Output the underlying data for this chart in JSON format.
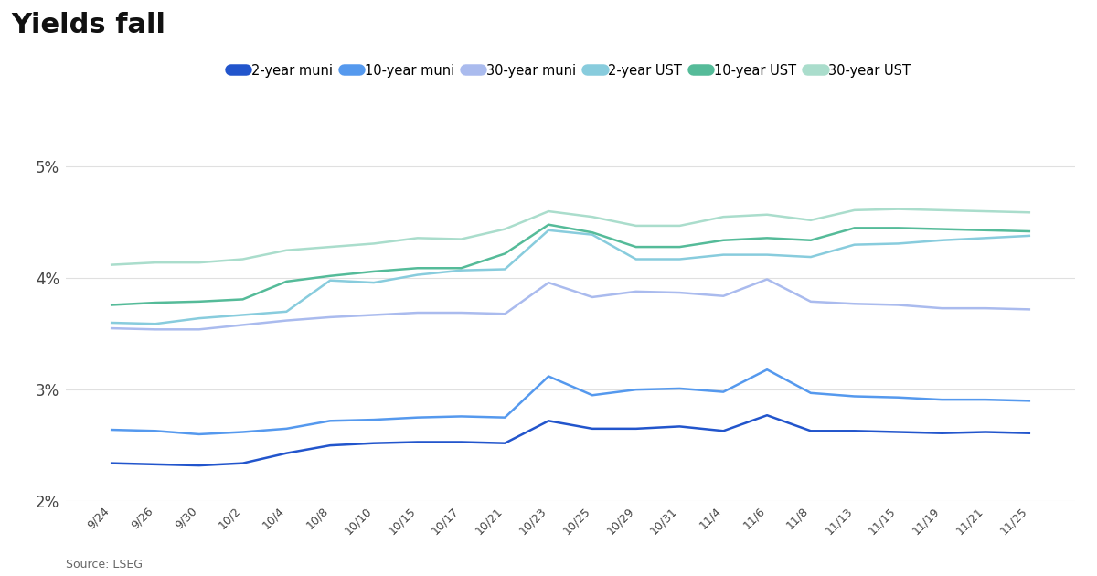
{
  "title": "Yields fall",
  "source": "Source: LSEG",
  "x_labels": [
    "9/24",
    "9/26",
    "9/30",
    "10/2",
    "10/4",
    "10/8",
    "10/10",
    "10/15",
    "10/17",
    "10/21",
    "10/23",
    "10/25",
    "10/29",
    "10/31",
    "11/4",
    "11/6",
    "11/8",
    "11/13",
    "11/15",
    "11/19",
    "11/21",
    "11/25"
  ],
  "series": {
    "2yr_muni": [
      2.34,
      2.33,
      2.32,
      2.34,
      2.43,
      2.5,
      2.52,
      2.53,
      2.53,
      2.52,
      2.72,
      2.65,
      2.65,
      2.67,
      2.63,
      2.77,
      2.63,
      2.63,
      2.62,
      2.61,
      2.62,
      2.61
    ],
    "10yr_muni": [
      2.64,
      2.63,
      2.6,
      2.62,
      2.65,
      2.72,
      2.73,
      2.75,
      2.76,
      2.75,
      3.12,
      2.95,
      3.0,
      3.01,
      2.98,
      3.18,
      2.97,
      2.94,
      2.93,
      2.91,
      2.91,
      2.9
    ],
    "30yr_muni": [
      3.55,
      3.54,
      3.54,
      3.58,
      3.62,
      3.65,
      3.67,
      3.69,
      3.69,
      3.68,
      3.96,
      3.83,
      3.88,
      3.87,
      3.84,
      3.99,
      3.79,
      3.77,
      3.76,
      3.73,
      3.73,
      3.72
    ],
    "2yr_UST": [
      3.6,
      3.59,
      3.64,
      3.67,
      3.7,
      3.98,
      3.96,
      4.03,
      4.07,
      4.08,
      4.43,
      4.39,
      4.17,
      4.17,
      4.21,
      4.21,
      4.19,
      4.3,
      4.31,
      4.34,
      4.36,
      4.38
    ],
    "10yr_UST": [
      3.76,
      3.78,
      3.79,
      3.81,
      3.97,
      4.02,
      4.06,
      4.09,
      4.09,
      4.22,
      4.48,
      4.41,
      4.28,
      4.28,
      4.34,
      4.36,
      4.34,
      4.45,
      4.45,
      4.44,
      4.43,
      4.42
    ],
    "30yr_UST": [
      4.12,
      4.14,
      4.14,
      4.17,
      4.25,
      4.28,
      4.31,
      4.36,
      4.35,
      4.44,
      4.6,
      4.55,
      4.47,
      4.47,
      4.55,
      4.57,
      4.52,
      4.61,
      4.62,
      4.61,
      4.6,
      4.59
    ]
  },
  "colors": {
    "2yr_muni": "#2255cc",
    "10yr_muni": "#5599ee",
    "30yr_muni": "#aabbee",
    "2yr_UST": "#88ccdd",
    "10yr_UST": "#55bb99",
    "30yr_UST": "#aaddcc"
  },
  "legend_labels": {
    "2yr_muni": "2-year muni",
    "10yr_muni": "10-year muni",
    "30yr_muni": "30-year muni",
    "2yr_UST": "2-year UST",
    "10yr_UST": "10-year UST",
    "30yr_UST": "30-year UST"
  },
  "ylim": [
    2.0,
    5.1
  ],
  "yticks": [
    2.0,
    3.0,
    4.0,
    5.0
  ],
  "ytick_labels": [
    "2%",
    "3%",
    "4%",
    "5%"
  ],
  "background_color": "#ffffff",
  "grid_color": "#e0e0e0"
}
